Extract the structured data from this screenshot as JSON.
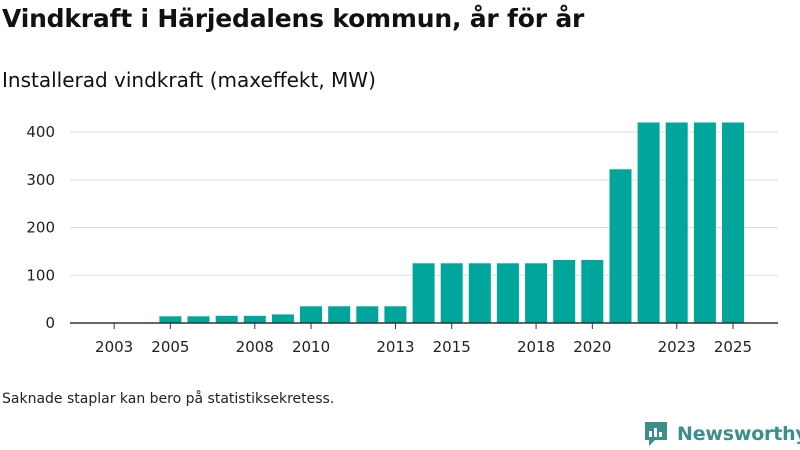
{
  "title": "Vindkraft i Härjedalens kommun, år för år",
  "subtitle": "Installerad vindkraft (maxeffekt, MW)",
  "note": "Saknade staplar kan bero på statistiksekretess.",
  "brand": {
    "name": "Newsworthy",
    "icon": "newsworthy-logo-icon"
  },
  "colors": {
    "bar": "#00a59b",
    "brand": "#3a8f8a",
    "grid": "#dddddd",
    "axis": "#333333"
  },
  "chart_data": {
    "type": "bar",
    "title": "Installerad vindkraft (maxeffekt, MW)",
    "xlabel": "",
    "ylabel": "",
    "ylim": [
      0,
      440
    ],
    "yticks": [
      0,
      100,
      200,
      300,
      400
    ],
    "grid": true,
    "categories": [
      "2002",
      "2003",
      "2004",
      "2005",
      "2006",
      "2007",
      "2008",
      "2009",
      "2010",
      "2011",
      "2012",
      "2013",
      "2014",
      "2015",
      "2016",
      "2017",
      "2018",
      "2019",
      "2020",
      "2021",
      "2022",
      "2023",
      "2024",
      "2025"
    ],
    "values": [
      null,
      null,
      null,
      14,
      14,
      15,
      15,
      18,
      35,
      35,
      35,
      35,
      125,
      125,
      125,
      125,
      125,
      132,
      132,
      322,
      420,
      420,
      420,
      420
    ],
    "xtick_labels": [
      "2003",
      "2005",
      "2008",
      "2010",
      "2013",
      "2015",
      "2018",
      "2020",
      "2023",
      "2025"
    ]
  }
}
